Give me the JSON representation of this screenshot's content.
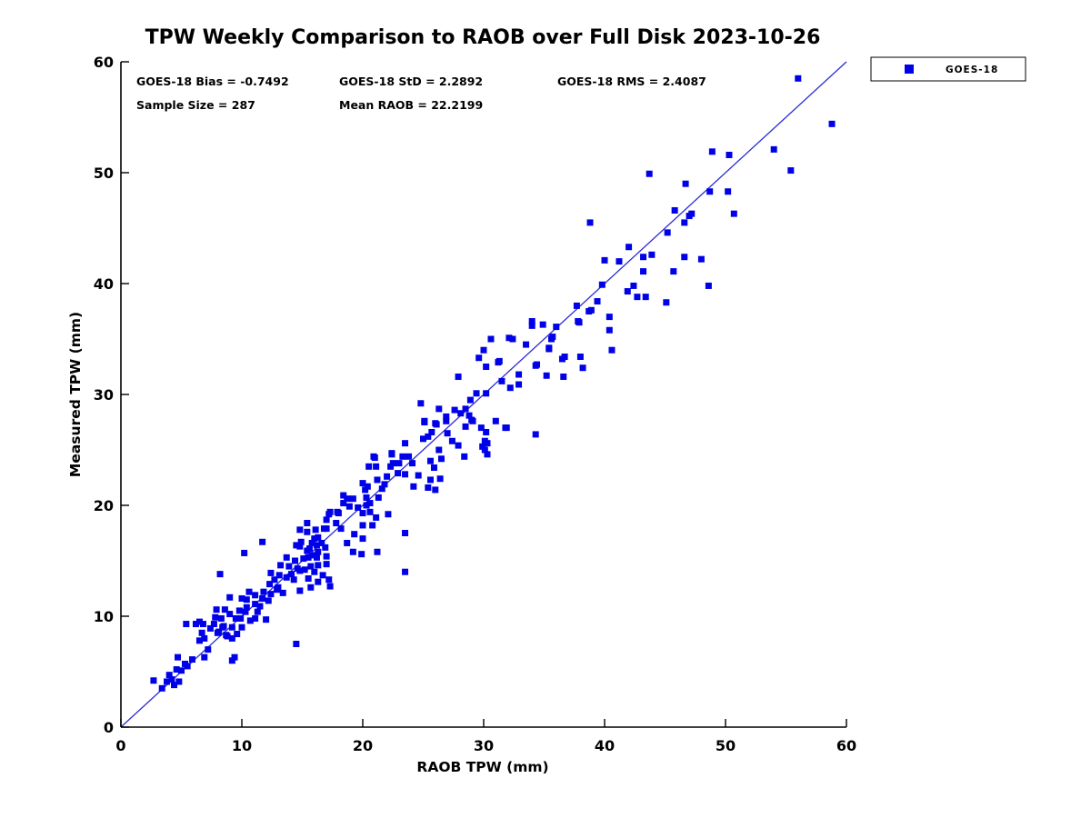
{
  "title": "TPW Weekly Comparison to RAOB over Full Disk 2023-10-26",
  "stats": {
    "bias": "GOES-18 Bias = -0.7492",
    "std": "GOES-18 StD = 2.2892",
    "rms": "GOES-18 RMS = 2.4087",
    "sample_size": "Sample Size = 287",
    "mean_raob": "Mean RAOB = 22.2199"
  },
  "legend": {
    "items": [
      {
        "label": "GOES-18",
        "marker": "square",
        "marker_color": "#0000e8"
      }
    ]
  },
  "chart_data": {
    "type": "scatter",
    "title": "TPW Weekly Comparison to RAOB over Full Disk 2023-10-26",
    "xlabel": "RAOB TPW (mm)",
    "ylabel": "Measured TPW (mm)",
    "xlim": [
      0,
      60
    ],
    "ylim": [
      0,
      60
    ],
    "x_ticks": [
      0,
      10,
      20,
      30,
      40,
      50,
      60
    ],
    "y_ticks": [
      0,
      10,
      20,
      30,
      40,
      50,
      60
    ],
    "grid": false,
    "legend_position": "outside-top-right",
    "reference_line": {
      "from": [
        0,
        0
      ],
      "to": [
        60,
        60
      ],
      "color": "#2b2bd5"
    },
    "series": [
      {
        "name": "GOES-18",
        "marker": "square",
        "color": "#0000e8",
        "points": [
          [
            2.7,
            4.2
          ],
          [
            3.4,
            3.5
          ],
          [
            3.8,
            4.1
          ],
          [
            4.0,
            4.7
          ],
          [
            4.2,
            4.3
          ],
          [
            4.4,
            3.8
          ],
          [
            4.6,
            5.2
          ],
          [
            4.7,
            6.3
          ],
          [
            4.8,
            4.1
          ],
          [
            5.0,
            5.1
          ],
          [
            5.3,
            5.7
          ],
          [
            5.4,
            9.3
          ],
          [
            5.5,
            5.5
          ],
          [
            5.9,
            6.1
          ],
          [
            6.2,
            9.3
          ],
          [
            6.5,
            7.8
          ],
          [
            6.5,
            9.5
          ],
          [
            6.7,
            8.5
          ],
          [
            6.8,
            9.3
          ],
          [
            6.9,
            6.3
          ],
          [
            6.9,
            8.0
          ],
          [
            7.2,
            7.0
          ],
          [
            7.4,
            8.9
          ],
          [
            7.7,
            9.3
          ],
          [
            7.8,
            9.9
          ],
          [
            7.9,
            10.6
          ],
          [
            8.0,
            8.5
          ],
          [
            8.1,
            8.6
          ],
          [
            8.2,
            13.8
          ],
          [
            8.3,
            9.8
          ],
          [
            8.4,
            9.0
          ],
          [
            8.5,
            9.1
          ],
          [
            8.6,
            10.6
          ],
          [
            8.7,
            8.3
          ],
          [
            8.8,
            8.2
          ],
          [
            9.0,
            10.2
          ],
          [
            9.0,
            11.7
          ],
          [
            9.2,
            6.0
          ],
          [
            9.2,
            8.0
          ],
          [
            9.2,
            9.0
          ],
          [
            9.4,
            6.3
          ],
          [
            9.5,
            9.8
          ],
          [
            9.6,
            8.4
          ],
          [
            9.8,
            10.5
          ],
          [
            9.9,
            9.8
          ],
          [
            10.0,
            9.0
          ],
          [
            10.0,
            11.6
          ],
          [
            10.2,
            15.7
          ],
          [
            10.3,
            10.4
          ],
          [
            10.4,
            10.8
          ],
          [
            10.4,
            11.5
          ],
          [
            10.6,
            12.2
          ],
          [
            10.7,
            9.6
          ],
          [
            11.1,
            9.8
          ],
          [
            11.1,
            11.1
          ],
          [
            11.1,
            11.9
          ],
          [
            11.3,
            10.4
          ],
          [
            11.5,
            10.9
          ],
          [
            11.7,
            11.6
          ],
          [
            11.7,
            16.7
          ],
          [
            11.8,
            12.2
          ],
          [
            12.0,
            9.7
          ],
          [
            12.2,
            11.4
          ],
          [
            12.3,
            12.9
          ],
          [
            12.4,
            13.9
          ],
          [
            12.4,
            12.0
          ],
          [
            12.7,
            13.3
          ],
          [
            12.9,
            12.4
          ],
          [
            13.0,
            12.6
          ],
          [
            13.1,
            13.7
          ],
          [
            13.2,
            14.6
          ],
          [
            13.4,
            12.1
          ],
          [
            13.7,
            13.5
          ],
          [
            13.7,
            15.3
          ],
          [
            13.9,
            14.5
          ],
          [
            14.1,
            13.8
          ],
          [
            14.3,
            13.3
          ],
          [
            14.4,
            15.0
          ],
          [
            14.5,
            7.5
          ],
          [
            14.5,
            16.4
          ],
          [
            14.6,
            14.3
          ],
          [
            14.8,
            12.3
          ],
          [
            14.8,
            14.1
          ],
          [
            14.8,
            16.3
          ],
          [
            14.8,
            17.8
          ],
          [
            14.9,
            16.7
          ],
          [
            15.1,
            15.2
          ],
          [
            15.2,
            14.2
          ],
          [
            15.4,
            15.9
          ],
          [
            15.4,
            17.6
          ],
          [
            15.4,
            18.4
          ],
          [
            15.5,
            13.4
          ],
          [
            15.5,
            15.3
          ],
          [
            15.6,
            16.1
          ],
          [
            15.7,
            12.6
          ],
          [
            15.7,
            14.5
          ],
          [
            15.8,
            16.6
          ],
          [
            15.9,
            15.5
          ],
          [
            16.0,
            14.0
          ],
          [
            16.0,
            17.0
          ],
          [
            16.1,
            17.8
          ],
          [
            16.2,
            15.3
          ],
          [
            16.2,
            16.4
          ],
          [
            16.3,
            13.1
          ],
          [
            16.3,
            14.6
          ],
          [
            16.3,
            15.8
          ],
          [
            16.3,
            17.1
          ],
          [
            16.6,
            16.6
          ],
          [
            16.7,
            13.7
          ],
          [
            16.8,
            17.9
          ],
          [
            16.9,
            16.2
          ],
          [
            17.0,
            14.7
          ],
          [
            17.0,
            15.4
          ],
          [
            17.0,
            17.9
          ],
          [
            17.0,
            18.7
          ],
          [
            17.2,
            13.3
          ],
          [
            17.2,
            19.2
          ],
          [
            17.3,
            12.7
          ],
          [
            17.3,
            19.4
          ],
          [
            17.8,
            18.4
          ],
          [
            17.9,
            19.4
          ],
          [
            18.0,
            19.3
          ],
          [
            18.2,
            17.9
          ],
          [
            18.4,
            20.2
          ],
          [
            18.4,
            20.9
          ],
          [
            18.7,
            16.6
          ],
          [
            18.7,
            20.6
          ],
          [
            18.9,
            19.9
          ],
          [
            19.2,
            15.8
          ],
          [
            19.2,
            20.6
          ],
          [
            19.3,
            17.4
          ],
          [
            19.6,
            19.8
          ],
          [
            19.9,
            15.6
          ],
          [
            20.0,
            17.0
          ],
          [
            20.0,
            18.2
          ],
          [
            20.0,
            19.3
          ],
          [
            20.0,
            22.0
          ],
          [
            20.2,
            21.4
          ],
          [
            20.3,
            20.0
          ],
          [
            20.3,
            20.7
          ],
          [
            20.4,
            21.7
          ],
          [
            20.5,
            23.5
          ],
          [
            20.6,
            19.4
          ],
          [
            20.6,
            20.2
          ],
          [
            20.8,
            18.2
          ],
          [
            20.9,
            24.4
          ],
          [
            21.0,
            24.3
          ],
          [
            21.1,
            18.9
          ],
          [
            21.1,
            23.5
          ],
          [
            21.2,
            15.8
          ],
          [
            21.2,
            22.3
          ],
          [
            21.3,
            20.7
          ],
          [
            21.6,
            21.5
          ],
          [
            21.8,
            21.9
          ],
          [
            22.0,
            22.6
          ],
          [
            22.1,
            19.2
          ],
          [
            22.3,
            23.5
          ],
          [
            22.4,
            24.7
          ],
          [
            22.4,
            24.6
          ],
          [
            22.5,
            23.8
          ],
          [
            22.9,
            22.9
          ],
          [
            23.0,
            23.8
          ],
          [
            23.3,
            24.4
          ],
          [
            23.5,
            17.5
          ],
          [
            23.5,
            22.8
          ],
          [
            23.5,
            25.6
          ],
          [
            23.8,
            24.4
          ],
          [
            24.1,
            23.8
          ],
          [
            24.2,
            21.7
          ],
          [
            24.6,
            22.7
          ],
          [
            24.8,
            29.2
          ],
          [
            25.0,
            26.0
          ],
          [
            25.1,
            27.5
          ],
          [
            25.1,
            27.6
          ],
          [
            25.4,
            21.6
          ],
          [
            25.4,
            26.2
          ],
          [
            25.6,
            22.3
          ],
          [
            25.6,
            24.0
          ],
          [
            25.7,
            26.6
          ],
          [
            25.9,
            23.4
          ],
          [
            26.0,
            21.4
          ],
          [
            26.0,
            27.4
          ],
          [
            26.1,
            27.3
          ],
          [
            26.3,
            25.0
          ],
          [
            26.3,
            28.7
          ],
          [
            26.4,
            22.4
          ],
          [
            26.5,
            24.2
          ],
          [
            26.9,
            27.6
          ],
          [
            26.9,
            28.0
          ],
          [
            27.0,
            26.5
          ],
          [
            27.4,
            25.8
          ],
          [
            23.5,
            14.0
          ],
          [
            27.6,
            28.6
          ],
          [
            27.9,
            25.4
          ],
          [
            27.9,
            31.6
          ],
          [
            28.1,
            28.3
          ],
          [
            28.4,
            24.4
          ],
          [
            28.5,
            27.1
          ],
          [
            28.5,
            28.7
          ],
          [
            28.8,
            28.1
          ],
          [
            28.9,
            29.5
          ],
          [
            29.0,
            27.7
          ],
          [
            29.1,
            27.6
          ],
          [
            29.4,
            30.1
          ],
          [
            29.6,
            33.3
          ],
          [
            29.8,
            27.0
          ],
          [
            29.9,
            25.3
          ],
          [
            30.0,
            34.0
          ],
          [
            30.1,
            25.8
          ],
          [
            30.1,
            25.0
          ],
          [
            30.2,
            26.6
          ],
          [
            30.2,
            30.1
          ],
          [
            30.2,
            32.5
          ],
          [
            30.3,
            24.6
          ],
          [
            30.3,
            25.6
          ],
          [
            30.6,
            35.0
          ],
          [
            31.0,
            27.6
          ],
          [
            31.2,
            32.9
          ],
          [
            31.3,
            33.0
          ],
          [
            31.5,
            31.2
          ],
          [
            31.8,
            27.0
          ],
          [
            31.9,
            27.0
          ],
          [
            32.1,
            35.1
          ],
          [
            32.2,
            30.6
          ],
          [
            32.4,
            35.0
          ],
          [
            32.9,
            30.9
          ],
          [
            32.9,
            31.8
          ],
          [
            33.5,
            34.5
          ],
          [
            34.0,
            36.2
          ],
          [
            34.0,
            36.6
          ],
          [
            34.3,
            26.4
          ],
          [
            34.3,
            32.6
          ],
          [
            34.4,
            32.7
          ],
          [
            34.9,
            36.3
          ],
          [
            35.2,
            31.7
          ],
          [
            35.4,
            34.1
          ],
          [
            35.4,
            34.2
          ],
          [
            35.6,
            35.0
          ],
          [
            35.7,
            35.2
          ],
          [
            36.0,
            36.1
          ],
          [
            36.5,
            33.2
          ],
          [
            36.6,
            31.6
          ],
          [
            36.7,
            33.4
          ],
          [
            37.7,
            38.0
          ],
          [
            37.8,
            36.6
          ],
          [
            37.9,
            36.5
          ],
          [
            38.0,
            33.4
          ],
          [
            38.2,
            32.4
          ],
          [
            38.7,
            37.5
          ],
          [
            38.8,
            45.5
          ],
          [
            38.9,
            37.6
          ],
          [
            39.4,
            38.4
          ],
          [
            39.8,
            39.9
          ],
          [
            40.0,
            42.1
          ],
          [
            40.4,
            35.8
          ],
          [
            40.4,
            37.0
          ],
          [
            40.6,
            34.0
          ],
          [
            41.2,
            42.0
          ],
          [
            41.9,
            39.3
          ],
          [
            42.0,
            43.3
          ],
          [
            42.4,
            39.8
          ],
          [
            42.7,
            38.8
          ],
          [
            43.2,
            41.1
          ],
          [
            43.2,
            42.4
          ],
          [
            43.4,
            38.8
          ],
          [
            43.7,
            49.9
          ],
          [
            43.9,
            42.6
          ],
          [
            45.1,
            38.3
          ],
          [
            45.2,
            44.6
          ],
          [
            45.7,
            41.1
          ],
          [
            45.8,
            46.6
          ],
          [
            46.6,
            42.4
          ],
          [
            46.6,
            45.5
          ],
          [
            46.7,
            49.0
          ],
          [
            47.0,
            46.1
          ],
          [
            47.2,
            46.3
          ],
          [
            48.0,
            42.2
          ],
          [
            48.6,
            39.8
          ],
          [
            48.7,
            48.3
          ],
          [
            48.9,
            51.9
          ],
          [
            50.2,
            48.3
          ],
          [
            50.3,
            51.6
          ],
          [
            50.7,
            46.3
          ],
          [
            54.0,
            52.1
          ],
          [
            55.4,
            50.2
          ],
          [
            56.0,
            58.5
          ],
          [
            58.8,
            54.4
          ]
        ]
      }
    ]
  }
}
